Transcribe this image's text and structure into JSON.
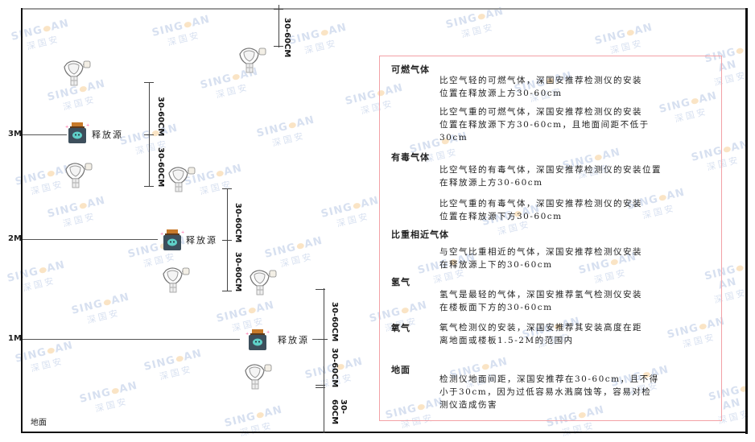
{
  "levels": {
    "m3": "3M",
    "m2": "2M",
    "m1": "1M"
  },
  "ground_label": "地面",
  "dimension_label": "30-60CM",
  "source_label": "释放源",
  "watermark": {
    "brand": "SINGOAN",
    "cn": "深国安"
  },
  "icons": {
    "detector": "gas-detector-icon",
    "source": "release-source-icon"
  },
  "colors": {
    "panel_border": "#f3a1a6",
    "source_body": "#3d4f5c",
    "source_cap": "#c87a2a",
    "source_face": "#5fd0c8"
  },
  "panel": {
    "sections": [
      {
        "title": "可燃气体",
        "paragraphs": [
          "比空气轻的可燃气体，深国安推荐检测仪的安装\n位置在释放源上方30-60cm",
          "比空气重的可燃气体，深国安推荐检测仪的安装\n位置在释放源下方30-60cm，且地面间距不低于\n30cm"
        ]
      },
      {
        "title": "有毒气体",
        "paragraphs": [
          "比空气轻的有毒气体，深国安推荐检测仪的安装位置\n在释放源上方30-60cm",
          "比空气重的有毒气体，深国安推荐检测仪的安装\n位置在释放源下方30-60cm"
        ]
      },
      {
        "title": "比重相近气体",
        "paragraphs": [
          "与空气比重相近的气体，深国安推荐检测仪安装\n在释放源上下的30-60cm"
        ]
      },
      {
        "title": "氢气",
        "paragraphs": [
          "氢气是最轻的气体，深国安推荐氢气检测仪安装\n在楼板面下方的30-60cm"
        ]
      },
      {
        "title": "氧气",
        "paragraphs": [
          "氧气检测仪的安装，深国安推荐其安装高度在距\n离地面或楼板1.5-2M的范围内"
        ]
      },
      {
        "title": "地面",
        "paragraphs": [
          "检测仪地面间距，深国安推荐在30-60cm，且不得\n小于30cm，因为过低容易水溅腐蚀等，容易对检\n测仪造成伤害"
        ]
      }
    ]
  }
}
